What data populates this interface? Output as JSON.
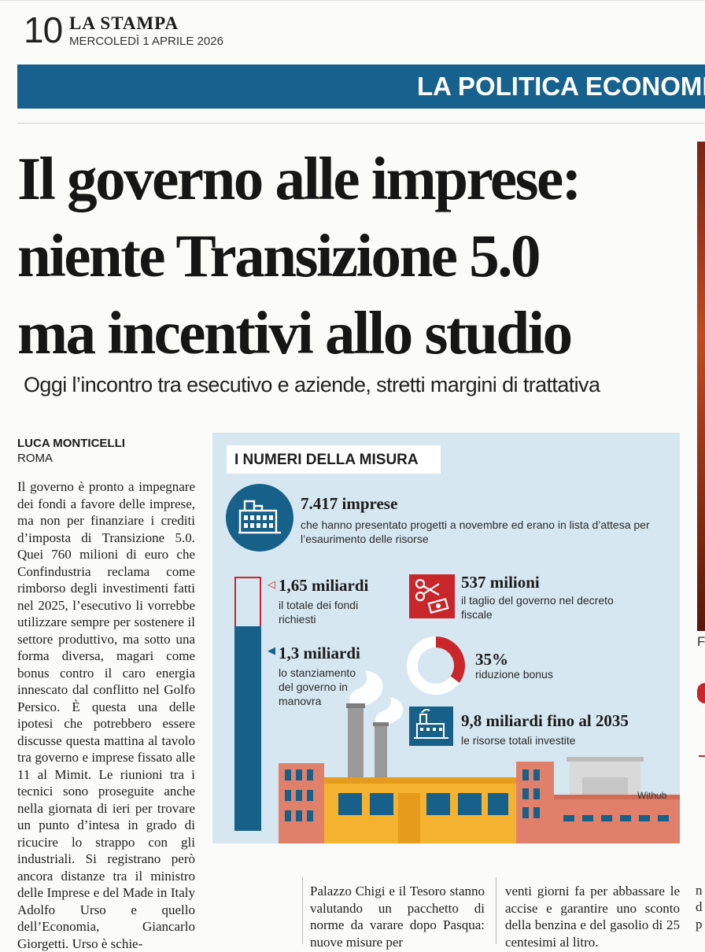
{
  "masthead": {
    "page_number": "10",
    "paper": "LA STAMPA",
    "date": "MERCOLEDÌ 1 APRILE 2026"
  },
  "section": "LA POLITICA ECONOMICA",
  "headline": [
    "Il governo alle imprese:",
    "niente Transizione 5.0",
    "ma incentivi allo studio"
  ],
  "subhead": "Oggi l’incontro tra esecutivo e aziende, stretti margini di trattativa",
  "byline": {
    "author": "LUCA MONTICELLI",
    "place": "ROMA"
  },
  "body": "Il governo è pronto a impegnare dei fondi a favore delle imprese, ma non per finanziare i crediti d’imposta di Transizione 5.0. Quei 760 milioni di euro che Confindustria reclama come rimborso degli investimenti fatti nel 2025, l’esecutivo li vorrebbe utilizzare sempre per sostenere il settore produttivo, ma sotto una forma diversa, magari come bonus contro il caro energia innescato dal conflitto nel Golfo Persico. È questa una delle ipotesi che potrebbero essere discusse questa mattina al tavolo tra governo e imprese fissato alle 11 al Mimit. Le riunioni tra i tecnici sono proseguite anche nella giornata di ieri per trovare un punto d’intesa in grado di ricucire lo strappo con gli industriali. Si registrano però ancora distanze tra il ministro delle Imprese e del Made in Italy Adolfo Urso e quello dell’Economia, Giancarlo Giorgetti. Urso è schie-",
  "infographic": {
    "title": "I NUMERI DELLA MISURA",
    "companies": {
      "value": "7.417",
      "unit": "imprese",
      "desc": "che hanno presentato progetti a novembre ed erano in lista d’attesa per l’esaurimento delle risorse"
    },
    "requested": {
      "value": "1,65 miliardi",
      "desc": "il totale dei fondi richiesti"
    },
    "allocated": {
      "value": "1,3 miliardi",
      "desc": "lo stanziamento del governo in manovra"
    },
    "cut": {
      "value": "537 milioni",
      "desc": "il taglio del governo nel decreto fiscale"
    },
    "reduction": {
      "value": "35%",
      "desc": "riduzione bonus",
      "fraction": 0.35
    },
    "total": {
      "value": "9,8 miliardi fino al 2035",
      "desc": "le risorse totali investite"
    },
    "credit": "Withub",
    "colors": {
      "blue": "#176089",
      "red": "#c8262b",
      "bg": "#d6e7f1",
      "yellow": "#f5b230",
      "brick": "#e0806a"
    }
  },
  "bottom_columns": [
    "Palazzo Chigi e il Tesoro stanno valutando un pacchetto di norme da varare dopo Pasqua: nuove misure per",
    "venti giorni fa per abbassare le accise e garantire uno sconto della benzina e del gasolio di 25 centesimi al litro."
  ],
  "edge": {
    "photo_caption": "F",
    "right_text": [
      "n",
      "d",
      "p"
    ]
  }
}
